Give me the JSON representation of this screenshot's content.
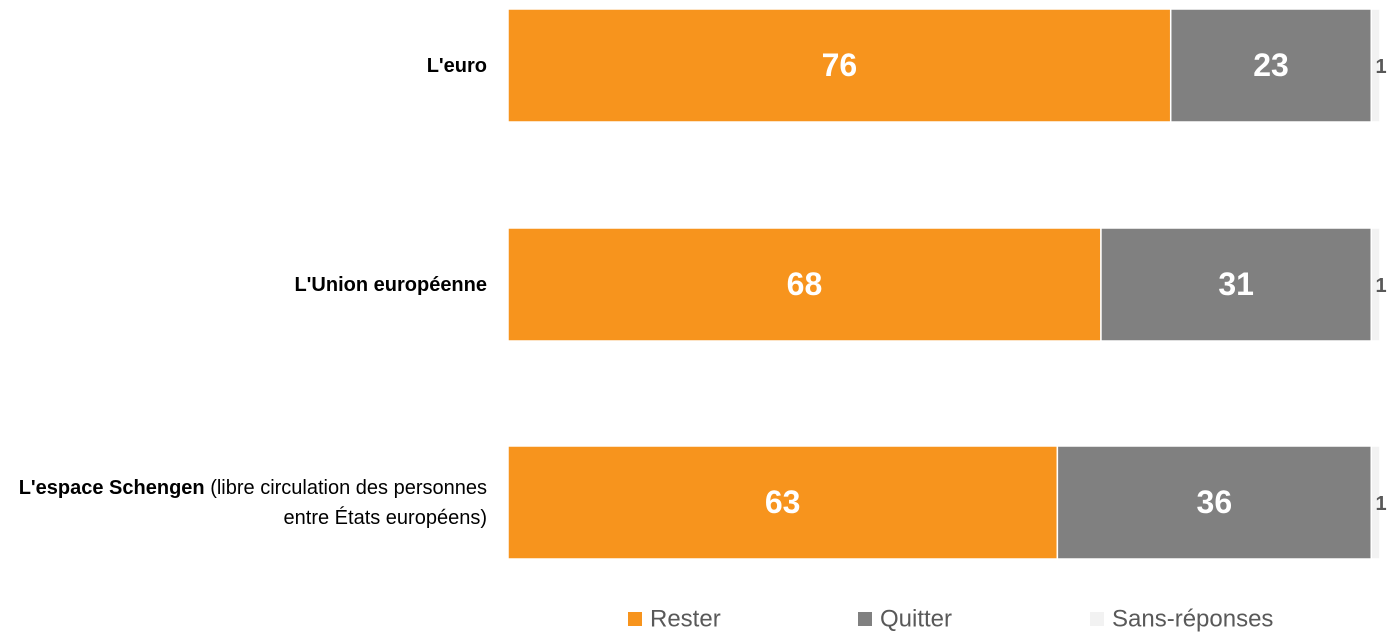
{
  "chart_data": {
    "type": "stacked_barh",
    "categories": [
      "L'euro",
      "L'Union européenne",
      "L'espace Schengen"
    ],
    "category_notes": [
      null,
      null,
      "(libre circulation des personnes entre États européens)"
    ],
    "series": [
      {
        "name": "Rester",
        "color": "#f7941d",
        "values": [
          76,
          68,
          63
        ]
      },
      {
        "name": "Quitter",
        "color": "#808080",
        "values": [
          23,
          31,
          36
        ]
      },
      {
        "name": "Sans-réponses",
        "color": "#f2f2f2",
        "values": [
          1,
          1,
          1
        ]
      }
    ],
    "xlim": [
      0,
      100
    ]
  }
}
